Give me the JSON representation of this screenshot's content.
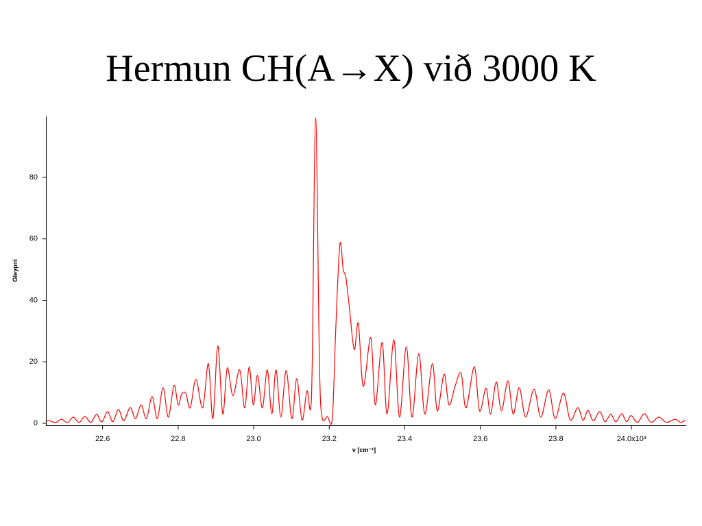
{
  "chart_data": {
    "type": "line",
    "title": "Hermun CH(A→X) við 3000 K",
    "x_label": "ν [cm⁻¹]",
    "y_label": "Gleypni",
    "color": "#ff0000",
    "xlim": [
      22.45,
      24.145
    ],
    "ylim": [
      0,
      100
    ],
    "xticks": [
      22.6,
      22.8,
      {
        "value": 23,
        "label": "23.0"
      },
      23.2,
      23.4,
      23.6,
      23.8,
      {
        "value": 24,
        "label": "24.0x10³"
      }
    ],
    "yticks": [
      0,
      20,
      40,
      60,
      80
    ],
    "x": [
      22.451,
      22.458,
      22.475,
      22.491,
      22.507,
      22.522,
      22.538,
      22.553,
      22.569,
      22.584,
      22.598,
      22.613,
      22.627,
      22.642,
      22.656,
      22.673,
      22.687,
      22.702,
      22.716,
      22.731,
      22.745,
      22.76,
      22.774,
      22.789,
      22.8,
      22.809,
      22.82,
      22.832,
      22.847,
      22.865,
      22.88,
      22.892,
      22.905,
      22.918,
      22.93,
      22.945,
      22.963,
      22.976,
      22.988,
      22.999,
      23.01,
      23.023,
      23.036,
      23.048,
      23.059,
      23.072,
      23.086,
      23.101,
      23.114,
      23.128,
      23.141,
      23.15,
      23.155,
      23.164,
      23.174,
      23.181,
      23.195,
      23.208,
      23.217,
      23.228,
      23.237,
      23.244,
      23.253,
      23.266,
      23.277,
      23.29,
      23.31,
      23.322,
      23.34,
      23.353,
      23.371,
      23.386,
      23.404,
      23.419,
      23.437,
      23.453,
      23.473,
      23.486,
      23.504,
      23.517,
      23.533,
      23.549,
      23.562,
      23.584,
      23.598,
      23.615,
      23.627,
      23.642,
      23.656,
      23.673,
      23.687,
      23.703,
      23.72,
      23.742,
      23.76,
      23.781,
      23.798,
      23.82,
      23.838,
      23.858,
      23.872,
      23.885,
      23.899,
      23.916,
      23.93,
      23.945,
      23.959,
      23.974,
      23.987,
      23.999,
      24.016,
      24.034,
      24.052,
      24.072,
      24.092,
      24.115,
      24.13,
      24.143
    ],
    "values": [
      0.5,
      0.9,
      0.2,
      1.3,
      0.2,
      2,
      0.3,
      2.2,
      0.3,
      2.9,
      0.4,
      3.8,
      0.5,
      4.5,
      0.8,
      5.1,
      1.5,
      6,
      1.5,
      8.7,
      1.5,
      11.6,
      2,
      12.3,
      6,
      9.4,
      9.8,
      5,
      14.3,
      5,
      19.4,
      1.5,
      25.2,
      3,
      18,
      9,
      17.4,
      5,
      18.3,
      6,
      15.6,
      5,
      17.4,
      3,
      17.4,
      2,
      17.2,
      1.5,
      14.5,
      1,
      10.5,
      4.5,
      20,
      99.4,
      20,
      2,
      2.2,
      1.5,
      30,
      58.2,
      50,
      47.5,
      38,
      24,
      32.5,
      12,
      27.9,
      6,
      26.3,
      3,
      27.2,
      2,
      25,
      2,
      22.7,
      3,
      19.4,
      4,
      16,
      6,
      12,
      16.3,
      5,
      18.3,
      4,
      11.4,
      3,
      13.4,
      4,
      13.8,
      3,
      11.6,
      2,
      11.1,
      2,
      10.9,
      1.5,
      9.8,
      1,
      5.1,
      1,
      4.2,
      0.8,
      3.8,
      0.5,
      2.9,
      0.5,
      3.1,
      0.5,
      2.5,
      0.3,
      3.1,
      0.3,
      2,
      0.3,
      1.3,
      0.3,
      1
    ]
  }
}
